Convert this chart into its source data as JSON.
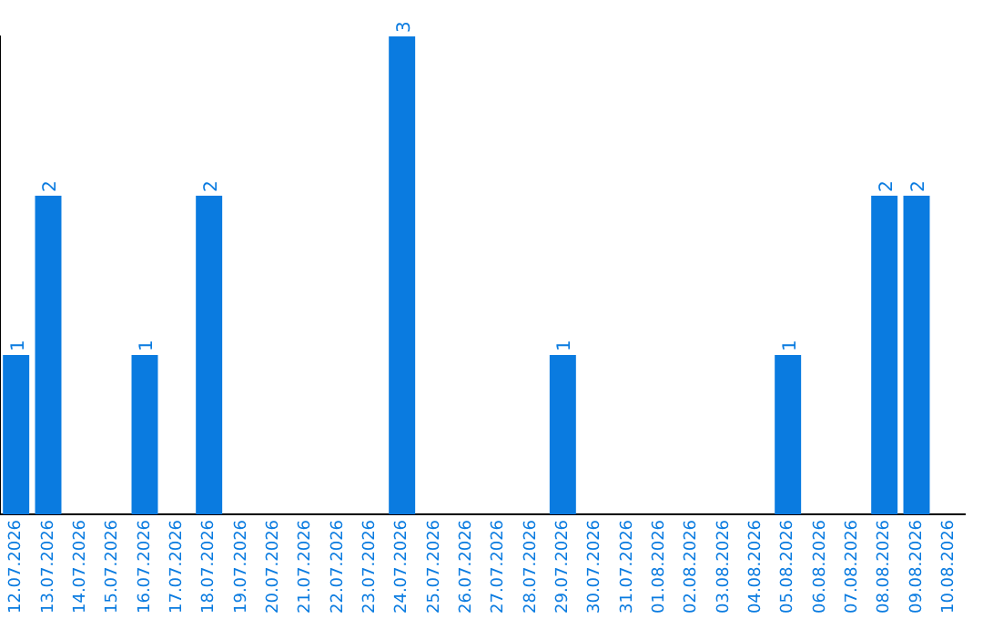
{
  "chart_data": {
    "type": "bar",
    "categories": [
      "12.07.2026",
      "13.07.2026",
      "14.07.2026",
      "15.07.2026",
      "16.07.2026",
      "17.07.2026",
      "18.07.2026",
      "19.07.2026",
      "20.07.2026",
      "21.07.2026",
      "22.07.2026",
      "23.07.2026",
      "24.07.2026",
      "25.07.2026",
      "26.07.2026",
      "27.07.2026",
      "28.07.2026",
      "29.07.2026",
      "30.07.2026",
      "31.07.2026",
      "01.08.2026",
      "02.08.2026",
      "03.08.2026",
      "04.08.2026",
      "05.08.2026",
      "06.08.2026",
      "07.08.2026",
      "08.08.2026",
      "09.08.2026",
      "10.08.2026"
    ],
    "values": [
      1,
      2,
      0,
      0,
      1,
      0,
      2,
      0,
      0,
      0,
      0,
      0,
      3,
      0,
      0,
      0,
      0,
      1,
      0,
      0,
      0,
      0,
      0,
      0,
      1,
      0,
      0,
      2,
      2,
      0
    ],
    "value_labels": [
      "1",
      "2",
      null,
      null,
      "1",
      null,
      "2",
      null,
      null,
      null,
      null,
      null,
      "3",
      null,
      null,
      null,
      null,
      "1",
      null,
      null,
      null,
      null,
      null,
      null,
      "1",
      null,
      null,
      "2",
      "2",
      null
    ],
    "color": "#0a7be0",
    "tick_labels": "x",
    "grid": false,
    "legend": false
  }
}
